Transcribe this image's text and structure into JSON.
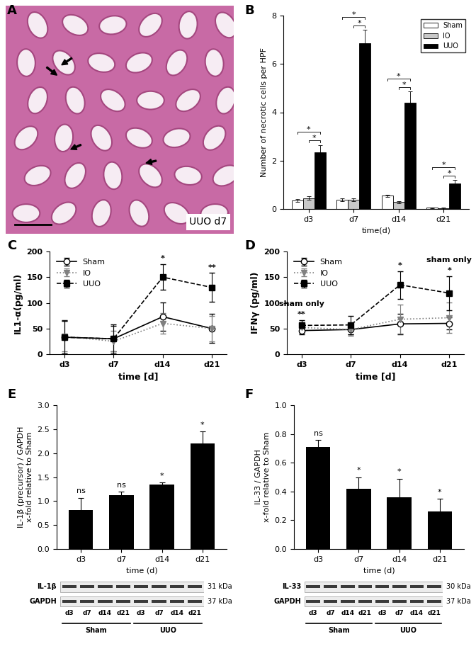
{
  "chart_data": [
    {
      "panel": "A",
      "type": "image",
      "annotation": "UUO d7"
    },
    {
      "panel": "B",
      "type": "bar",
      "categories": [
        "d3",
        "d7",
        "d14",
        "d21"
      ],
      "series": [
        {
          "name": "Sham",
          "color": "#ffffff",
          "values": [
            0.35,
            0.38,
            0.55,
            0.05
          ],
          "errors": [
            0.05,
            0.05,
            0.05,
            0.02
          ]
        },
        {
          "name": "IO",
          "color": "#c8c8c8",
          "values": [
            0.45,
            0.38,
            0.28,
            0.03
          ],
          "errors": [
            0.07,
            0.05,
            0.04,
            0.02
          ]
        },
        {
          "name": "UUO",
          "color": "#000000",
          "values": [
            2.35,
            6.85,
            4.4,
            1.05
          ],
          "errors": [
            0.3,
            0.55,
            0.45,
            0.15
          ]
        }
      ],
      "xlabel": "time(d)",
      "ylabel": "Number of necrotic cells per HPF",
      "ylim": [
        0,
        8
      ],
      "yticks": [
        0,
        2,
        4,
        6,
        8
      ],
      "legend": "upper right",
      "significance": [
        {
          "category": "d3",
          "pair": [
            "IO",
            "UUO"
          ],
          "label": "*"
        },
        {
          "category": "d3",
          "pair": [
            "Sham",
            "UUO"
          ],
          "label": "*"
        },
        {
          "category": "d7",
          "pair": [
            "IO",
            "UUO"
          ],
          "label": "*"
        },
        {
          "category": "d7",
          "pair": [
            "Sham",
            "UUO"
          ],
          "label": "*"
        },
        {
          "category": "d14",
          "pair": [
            "IO",
            "UUO"
          ],
          "label": "*"
        },
        {
          "category": "d14",
          "pair": [
            "Sham",
            "UUO"
          ],
          "label": "*"
        },
        {
          "category": "d21",
          "pair": [
            "IO",
            "UUO"
          ],
          "label": "*"
        },
        {
          "category": "d21",
          "pair": [
            "Sham",
            "UUO"
          ],
          "label": "*"
        }
      ]
    },
    {
      "panel": "C",
      "type": "line",
      "categories": [
        "d3",
        "d7",
        "d14",
        "d21"
      ],
      "series": [
        {
          "name": "Sham",
          "color": "#000000",
          "marker": "open_circle",
          "line_style": "solid",
          "values": [
            33,
            30,
            73,
            50
          ],
          "errors": [
            33,
            25,
            28,
            28
          ]
        },
        {
          "name": "IO",
          "color": "#808080",
          "marker": "triangle_down",
          "line_style": "dotted",
          "values": [
            35,
            25,
            60,
            50
          ],
          "errors": [
            30,
            20,
            20,
            25
          ]
        },
        {
          "name": "UUO",
          "color": "#000000",
          "marker": "square",
          "line_style": "dashed",
          "values": [
            33,
            30,
            150,
            130
          ],
          "errors": [
            32,
            28,
            25,
            28
          ]
        }
      ],
      "xlabel": "time [d]",
      "ylabel": "IL1-α(pg/ml)",
      "ylim": [
        0,
        200
      ],
      "yticks": [
        0,
        50,
        100,
        150,
        200
      ],
      "legend": "upper left",
      "annotations": [
        {
          "category": "d14",
          "texts": [
            "*"
          ]
        },
        {
          "category": "d21",
          "texts": [
            "**"
          ]
        }
      ]
    },
    {
      "panel": "D",
      "type": "line",
      "categories": [
        "d3",
        "d7",
        "d14",
        "d21"
      ],
      "series": [
        {
          "name": "Sham",
          "color": "#000000",
          "marker": "open_circle",
          "line_style": "solid",
          "values": [
            46,
            48,
            59,
            60
          ],
          "errors": [
            8,
            10,
            20,
            12
          ]
        },
        {
          "name": "IO",
          "color": "#808080",
          "marker": "triangle_down",
          "line_style": "dotted",
          "values": [
            52,
            48,
            68,
            71
          ],
          "errors": [
            10,
            12,
            28,
            30
          ]
        },
        {
          "name": "UUO",
          "color": "#000000",
          "marker": "square",
          "line_style": "dashed",
          "values": [
            56,
            57,
            135,
            119
          ],
          "errors": [
            10,
            18,
            27,
            33
          ]
        }
      ],
      "xlabel": "time [d]",
      "ylabel": "IFNγ (pg/ml)",
      "ylim": [
        0,
        200
      ],
      "yticks": [
        0,
        50,
        100,
        150,
        200
      ],
      "legend": "upper left",
      "annotations": [
        {
          "category": "d3",
          "texts": [
            "**",
            "sham only"
          ]
        },
        {
          "category": "d14",
          "texts": [
            "*"
          ]
        },
        {
          "category": "d21",
          "texts": [
            "*",
            "sham only"
          ]
        }
      ]
    },
    {
      "panel": "E",
      "type": "bar",
      "categories": [
        "d3",
        "d7",
        "d14",
        "d21"
      ],
      "values": [
        0.82,
        1.13,
        1.35,
        2.2
      ],
      "errors": [
        0.25,
        0.07,
        0.04,
        0.25
      ],
      "color": "#000000",
      "significance_labels": [
        "ns",
        "ns",
        "*",
        "*"
      ],
      "xlabel": "time (d)",
      "ylabel": "IL-1β (precursor) / GAPDH\nx-fold relative to Sham",
      "ylim": [
        0,
        3.0
      ],
      "yticks": [
        {
          "value": 0,
          "label": "0.0"
        },
        {
          "value": 0.5,
          "label": "0.5"
        },
        {
          "value": 1,
          "label": "1.0"
        },
        {
          "value": 1.5,
          "label": "1.5"
        },
        {
          "value": 2,
          "label": "2.0"
        },
        {
          "value": 2.5,
          "label": "2.5"
        },
        {
          "value": 3,
          "label": "3.0"
        }
      ],
      "blot": {
        "rows": [
          {
            "name": "IL-1β",
            "size": "31 kDa"
          },
          {
            "name": "GAPDH",
            "size": "37 kDa"
          }
        ],
        "lanes": [
          "d3",
          "d7",
          "d14",
          "d21",
          "d3",
          "d7",
          "d14",
          "d21"
        ],
        "groups": [
          "Sham",
          "UUO"
        ]
      }
    },
    {
      "panel": "F",
      "type": "bar",
      "categories": [
        "d3",
        "d7",
        "d14",
        "d21"
      ],
      "values": [
        0.71,
        0.42,
        0.36,
        0.26
      ],
      "errors": [
        0.05,
        0.08,
        0.13,
        0.09
      ],
      "color": "#000000",
      "significance_labels": [
        "ns",
        "*",
        "*",
        "*"
      ],
      "xlabel": "time (d)",
      "ylabel": "IL-33 / GAPDH\nx-fold relative to Sham",
      "ylim": [
        0,
        1.0
      ],
      "yticks": [
        {
          "value": 0,
          "label": "0.0"
        },
        {
          "value": 0.2,
          "label": "0.2"
        },
        {
          "value": 0.4,
          "label": "0.4"
        },
        {
          "value": 0.6,
          "label": "0.6"
        },
        {
          "value": 0.8,
          "label": "0.8"
        },
        {
          "value": 1,
          "label": "1.0"
        }
      ],
      "blot": {
        "rows": [
          {
            "name": "IL-33",
            "size": "30 kDa"
          },
          {
            "name": "GAPDH",
            "size": "37 kDa"
          }
        ],
        "lanes": [
          "d3",
          "d7",
          "d14",
          "d21",
          "d3",
          "d7",
          "d14",
          "d21"
        ],
        "groups": [
          "Sham",
          "UUO"
        ]
      }
    }
  ]
}
